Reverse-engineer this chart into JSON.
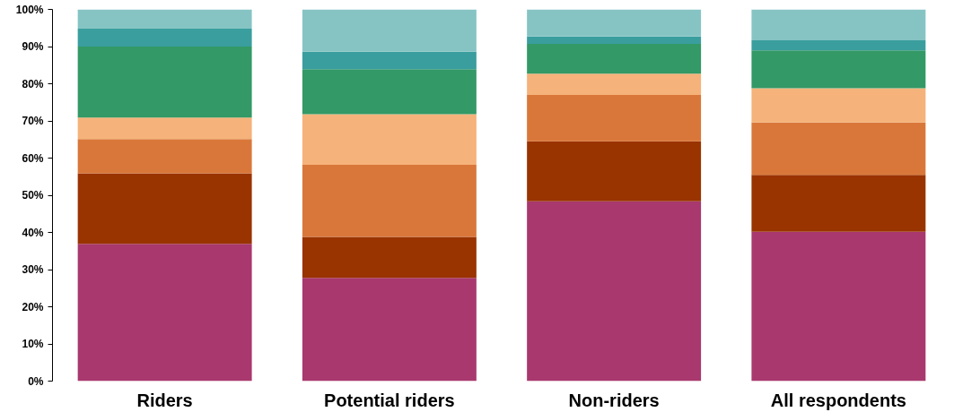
{
  "chart_data": {
    "type": "bar",
    "stacked": true,
    "categories": [
      "Riders",
      "Potential riders",
      "Non-riders",
      "All respondents"
    ],
    "series": [
      {
        "color": "#a8386e",
        "values": [
          36.9,
          27.8,
          48.4,
          40.2
        ]
      },
      {
        "color": "#993300",
        "values": [
          19.0,
          11.0,
          16.1,
          15.3
        ]
      },
      {
        "color": "#d9773a",
        "values": [
          9.2,
          19.4,
          12.5,
          14.1
        ]
      },
      {
        "color": "#f5b27a",
        "values": [
          5.8,
          13.6,
          5.7,
          9.2
        ]
      },
      {
        "color": "#339966",
        "values": [
          19.1,
          12.1,
          8.0,
          10.2
        ]
      },
      {
        "color": "#3a9e9e",
        "values": [
          4.8,
          4.7,
          2.0,
          2.7
        ]
      },
      {
        "color": "#86c4c4",
        "values": [
          5.2,
          11.4,
          7.3,
          8.3
        ]
      }
    ],
    "ylim": [
      0,
      100
    ],
    "yticks": [
      {
        "value": 0,
        "label": "0%"
      },
      {
        "value": 10,
        "label": "10%"
      },
      {
        "value": 20,
        "label": "20%"
      },
      {
        "value": 30,
        "label": "30%"
      },
      {
        "value": 40,
        "label": "40%"
      },
      {
        "value": 50,
        "label": "50%"
      },
      {
        "value": 60,
        "label": "60%"
      },
      {
        "value": 70,
        "label": "70%"
      },
      {
        "value": 80,
        "label": "80%"
      },
      {
        "value": 90,
        "label": "90%"
      },
      {
        "value": 100,
        "label": "100%"
      }
    ],
    "grid": false
  }
}
